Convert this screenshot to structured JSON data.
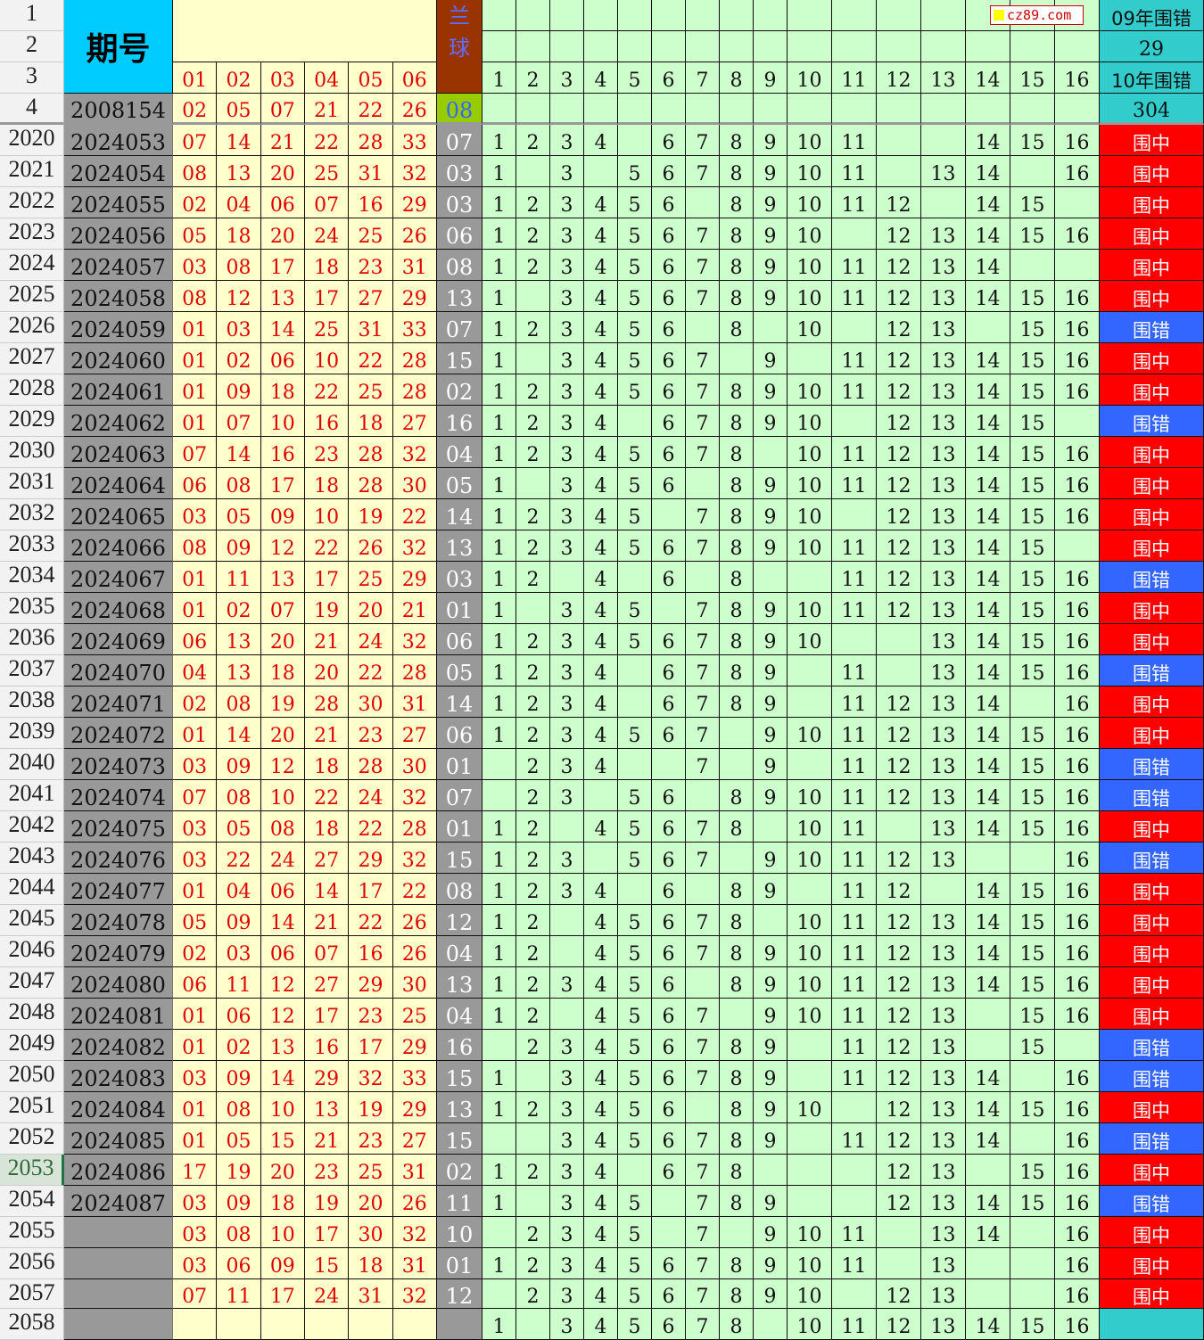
{
  "header": {
    "row_numbers": [
      "1",
      "2",
      "3",
      "4"
    ],
    "issue_title": "期号",
    "red_labels": [
      "01",
      "02",
      "03",
      "04",
      "05",
      "06"
    ],
    "blue_title": "兰球",
    "col_labels": [
      "1",
      "2",
      "3",
      "4",
      "5",
      "6",
      "7",
      "8",
      "9",
      "10",
      "11",
      "12",
      "13",
      "14",
      "15",
      "16"
    ],
    "stat_09_label": "09年围错",
    "stat_09_value": "29",
    "stat_10_label": "10年围错",
    "stat_10_value": "304",
    "ref_issue": "2008154",
    "ref_red": [
      "02",
      "05",
      "07",
      "21",
      "22",
      "26"
    ],
    "ref_blue": "08"
  },
  "watermark": "cz89.com",
  "colors": {
    "hit": "#ff0000",
    "miss": "#3366ff",
    "issue_bg": "#999999",
    "red_bg": "#ffffcc",
    "grid_bg": "#ccffcc",
    "header_cyan": "#00ccff",
    "blue_header": "#993300"
  },
  "selected_row": "2053",
  "rows": [
    {
      "n": "2020",
      "issue": "2024053",
      "red": [
        "07",
        "14",
        "21",
        "22",
        "28",
        "33"
      ],
      "blue": "07",
      "nums": [
        1,
        2,
        3,
        4,
        6,
        7,
        8,
        9,
        10,
        11,
        14,
        15,
        16
      ],
      "status": "围中"
    },
    {
      "n": "2021",
      "issue": "2024054",
      "red": [
        "08",
        "13",
        "20",
        "25",
        "31",
        "32"
      ],
      "blue": "03",
      "nums": [
        1,
        3,
        5,
        6,
        7,
        8,
        9,
        10,
        11,
        13,
        14,
        16
      ],
      "status": "围中"
    },
    {
      "n": "2022",
      "issue": "2024055",
      "red": [
        "02",
        "04",
        "06",
        "07",
        "16",
        "29"
      ],
      "blue": "03",
      "nums": [
        1,
        2,
        3,
        4,
        5,
        6,
        8,
        9,
        10,
        11,
        12,
        14,
        15
      ],
      "status": "围中"
    },
    {
      "n": "2023",
      "issue": "2024056",
      "red": [
        "05",
        "18",
        "20",
        "24",
        "25",
        "26"
      ],
      "blue": "06",
      "nums": [
        1,
        2,
        3,
        4,
        5,
        6,
        7,
        8,
        9,
        10,
        12,
        13,
        14,
        15,
        16
      ],
      "status": "围中"
    },
    {
      "n": "2024",
      "issue": "2024057",
      "red": [
        "03",
        "08",
        "17",
        "18",
        "23",
        "31"
      ],
      "blue": "08",
      "nums": [
        1,
        2,
        3,
        4,
        5,
        6,
        7,
        8,
        9,
        10,
        11,
        12,
        13,
        14
      ],
      "status": "围中"
    },
    {
      "n": "2025",
      "issue": "2024058",
      "red": [
        "08",
        "12",
        "13",
        "17",
        "27",
        "29"
      ],
      "blue": "13",
      "nums": [
        1,
        3,
        4,
        5,
        6,
        7,
        8,
        9,
        10,
        11,
        12,
        13,
        14,
        15,
        16
      ],
      "status": "围中"
    },
    {
      "n": "2026",
      "issue": "2024059",
      "red": [
        "01",
        "03",
        "14",
        "25",
        "31",
        "33"
      ],
      "blue": "07",
      "nums": [
        1,
        2,
        3,
        4,
        5,
        6,
        8,
        10,
        12,
        13,
        15,
        16
      ],
      "status": "围错"
    },
    {
      "n": "2027",
      "issue": "2024060",
      "red": [
        "01",
        "02",
        "06",
        "10",
        "22",
        "28"
      ],
      "blue": "15",
      "nums": [
        1,
        3,
        4,
        5,
        6,
        7,
        9,
        11,
        12,
        13,
        14,
        15,
        16
      ],
      "status": "围中"
    },
    {
      "n": "2028",
      "issue": "2024061",
      "red": [
        "01",
        "09",
        "18",
        "22",
        "25",
        "28"
      ],
      "blue": "02",
      "nums": [
        1,
        2,
        3,
        4,
        5,
        6,
        7,
        8,
        9,
        10,
        11,
        12,
        13,
        14,
        15,
        16
      ],
      "status": "围中"
    },
    {
      "n": "2029",
      "issue": "2024062",
      "red": [
        "01",
        "07",
        "10",
        "16",
        "18",
        "27"
      ],
      "blue": "16",
      "nums": [
        1,
        2,
        3,
        4,
        6,
        7,
        8,
        9,
        10,
        12,
        13,
        14,
        15
      ],
      "status": "围错"
    },
    {
      "n": "2030",
      "issue": "2024063",
      "red": [
        "07",
        "14",
        "16",
        "23",
        "28",
        "32"
      ],
      "blue": "04",
      "nums": [
        1,
        2,
        3,
        4,
        5,
        6,
        7,
        8,
        10,
        11,
        12,
        13,
        14,
        15,
        16
      ],
      "status": "围中"
    },
    {
      "n": "2031",
      "issue": "2024064",
      "red": [
        "06",
        "08",
        "17",
        "18",
        "28",
        "30"
      ],
      "blue": "05",
      "nums": [
        1,
        3,
        4,
        5,
        6,
        8,
        9,
        10,
        11,
        12,
        13,
        14,
        15,
        16
      ],
      "status": "围中"
    },
    {
      "n": "2032",
      "issue": "2024065",
      "red": [
        "03",
        "05",
        "09",
        "10",
        "19",
        "22"
      ],
      "blue": "14",
      "nums": [
        1,
        2,
        3,
        4,
        5,
        7,
        8,
        9,
        10,
        12,
        13,
        14,
        15,
        16
      ],
      "status": "围中"
    },
    {
      "n": "2033",
      "issue": "2024066",
      "red": [
        "08",
        "09",
        "12",
        "22",
        "26",
        "32"
      ],
      "blue": "13",
      "nums": [
        1,
        2,
        3,
        4,
        5,
        6,
        7,
        8,
        9,
        10,
        11,
        12,
        13,
        14,
        15
      ],
      "status": "围中"
    },
    {
      "n": "2034",
      "issue": "2024067",
      "red": [
        "01",
        "11",
        "13",
        "17",
        "25",
        "29"
      ],
      "blue": "03",
      "nums": [
        1,
        2,
        4,
        6,
        8,
        11,
        12,
        13,
        14,
        15,
        16
      ],
      "status": "围错"
    },
    {
      "n": "2035",
      "issue": "2024068",
      "red": [
        "01",
        "02",
        "07",
        "19",
        "20",
        "21"
      ],
      "blue": "01",
      "nums": [
        1,
        3,
        4,
        5,
        7,
        8,
        9,
        10,
        11,
        12,
        13,
        14,
        15,
        16
      ],
      "status": "围中"
    },
    {
      "n": "2036",
      "issue": "2024069",
      "red": [
        "06",
        "13",
        "20",
        "21",
        "24",
        "32"
      ],
      "blue": "06",
      "nums": [
        1,
        2,
        3,
        4,
        5,
        6,
        7,
        8,
        9,
        10,
        13,
        14,
        15,
        16
      ],
      "status": "围中"
    },
    {
      "n": "2037",
      "issue": "2024070",
      "red": [
        "04",
        "13",
        "18",
        "20",
        "22",
        "28"
      ],
      "blue": "05",
      "nums": [
        1,
        2,
        3,
        4,
        6,
        7,
        8,
        9,
        11,
        13,
        14,
        15,
        16
      ],
      "status": "围错"
    },
    {
      "n": "2038",
      "issue": "2024071",
      "red": [
        "02",
        "08",
        "19",
        "28",
        "30",
        "31"
      ],
      "blue": "14",
      "nums": [
        1,
        2,
        3,
        4,
        6,
        7,
        8,
        9,
        11,
        12,
        13,
        14,
        16
      ],
      "status": "围中"
    },
    {
      "n": "2039",
      "issue": "2024072",
      "red": [
        "01",
        "14",
        "20",
        "21",
        "23",
        "27"
      ],
      "blue": "06",
      "nums": [
        1,
        2,
        3,
        4,
        5,
        6,
        7,
        9,
        10,
        11,
        12,
        13,
        14,
        15,
        16
      ],
      "status": "围中"
    },
    {
      "n": "2040",
      "issue": "2024073",
      "red": [
        "03",
        "09",
        "12",
        "18",
        "28",
        "30"
      ],
      "blue": "01",
      "nums": [
        2,
        3,
        4,
        7,
        9,
        11,
        12,
        13,
        14,
        15,
        16
      ],
      "status": "围错"
    },
    {
      "n": "2041",
      "issue": "2024074",
      "red": [
        "07",
        "08",
        "10",
        "22",
        "24",
        "32"
      ],
      "blue": "07",
      "nums": [
        2,
        3,
        5,
        6,
        8,
        9,
        10,
        11,
        12,
        13,
        14,
        15,
        16
      ],
      "status": "围错"
    },
    {
      "n": "2042",
      "issue": "2024075",
      "red": [
        "03",
        "05",
        "08",
        "18",
        "22",
        "28"
      ],
      "blue": "01",
      "nums": [
        1,
        2,
        4,
        5,
        6,
        7,
        8,
        10,
        11,
        13,
        14,
        15,
        16
      ],
      "status": "围中"
    },
    {
      "n": "2043",
      "issue": "2024076",
      "red": [
        "03",
        "22",
        "24",
        "27",
        "29",
        "32"
      ],
      "blue": "15",
      "nums": [
        1,
        2,
        3,
        5,
        6,
        7,
        9,
        10,
        11,
        12,
        13,
        16
      ],
      "status": "围错"
    },
    {
      "n": "2044",
      "issue": "2024077",
      "red": [
        "01",
        "04",
        "06",
        "14",
        "17",
        "22"
      ],
      "blue": "08",
      "nums": [
        1,
        2,
        3,
        4,
        6,
        8,
        9,
        11,
        12,
        14,
        15,
        16
      ],
      "status": "围中"
    },
    {
      "n": "2045",
      "issue": "2024078",
      "red": [
        "05",
        "09",
        "14",
        "21",
        "22",
        "26"
      ],
      "blue": "12",
      "nums": [
        1,
        2,
        4,
        5,
        6,
        7,
        8,
        10,
        11,
        12,
        13,
        14,
        15,
        16
      ],
      "status": "围中"
    },
    {
      "n": "2046",
      "issue": "2024079",
      "red": [
        "02",
        "03",
        "06",
        "07",
        "16",
        "26"
      ],
      "blue": "04",
      "nums": [
        1,
        2,
        4,
        5,
        6,
        7,
        8,
        9,
        10,
        11,
        12,
        13,
        14,
        15,
        16
      ],
      "status": "围中"
    },
    {
      "n": "2047",
      "issue": "2024080",
      "red": [
        "06",
        "11",
        "12",
        "27",
        "29",
        "30"
      ],
      "blue": "13",
      "nums": [
        1,
        2,
        3,
        4,
        5,
        6,
        8,
        9,
        10,
        11,
        12,
        13,
        14,
        15,
        16
      ],
      "status": "围中"
    },
    {
      "n": "2048",
      "issue": "2024081",
      "red": [
        "01",
        "06",
        "12",
        "17",
        "23",
        "25"
      ],
      "blue": "04",
      "nums": [
        1,
        2,
        4,
        5,
        6,
        7,
        9,
        10,
        11,
        12,
        13,
        15,
        16
      ],
      "status": "围中"
    },
    {
      "n": "2049",
      "issue": "2024082",
      "red": [
        "01",
        "02",
        "13",
        "16",
        "17",
        "29"
      ],
      "blue": "16",
      "nums": [
        2,
        3,
        4,
        5,
        6,
        7,
        8,
        9,
        11,
        12,
        13,
        15
      ],
      "status": "围错"
    },
    {
      "n": "2050",
      "issue": "2024083",
      "red": [
        "03",
        "09",
        "14",
        "29",
        "32",
        "33"
      ],
      "blue": "15",
      "nums": [
        1,
        3,
        4,
        5,
        6,
        7,
        8,
        9,
        11,
        12,
        13,
        14,
        16
      ],
      "status": "围错"
    },
    {
      "n": "2051",
      "issue": "2024084",
      "red": [
        "01",
        "08",
        "10",
        "13",
        "19",
        "29"
      ],
      "blue": "13",
      "nums": [
        1,
        2,
        3,
        4,
        5,
        6,
        8,
        9,
        10,
        12,
        13,
        14,
        15,
        16
      ],
      "status": "围中"
    },
    {
      "n": "2052",
      "issue": "2024085",
      "red": [
        "01",
        "05",
        "15",
        "21",
        "23",
        "27"
      ],
      "blue": "15",
      "nums": [
        3,
        4,
        5,
        6,
        7,
        8,
        9,
        11,
        12,
        13,
        14,
        16
      ],
      "status": "围错"
    },
    {
      "n": "2053",
      "issue": "2024086",
      "red": [
        "17",
        "19",
        "20",
        "23",
        "25",
        "31"
      ],
      "blue": "02",
      "nums": [
        1,
        2,
        3,
        4,
        6,
        7,
        8,
        12,
        13,
        15,
        16
      ],
      "status": "围中"
    },
    {
      "n": "2054",
      "issue": "2024087",
      "red": [
        "03",
        "09",
        "18",
        "19",
        "20",
        "26"
      ],
      "blue": "11",
      "nums": [
        1,
        3,
        4,
        5,
        7,
        8,
        9,
        12,
        13,
        14,
        15,
        16
      ],
      "status": "围错"
    },
    {
      "n": "2055",
      "issue": "",
      "red": [
        "03",
        "08",
        "10",
        "17",
        "30",
        "32"
      ],
      "blue": "10",
      "nums": [
        2,
        3,
        4,
        5,
        7,
        9,
        10,
        11,
        13,
        14,
        16
      ],
      "status": "围中"
    },
    {
      "n": "2056",
      "issue": "",
      "red": [
        "03",
        "06",
        "09",
        "15",
        "18",
        "31"
      ],
      "blue": "01",
      "nums": [
        1,
        2,
        3,
        4,
        5,
        6,
        7,
        8,
        9,
        10,
        11,
        13,
        16
      ],
      "status": "围中"
    },
    {
      "n": "2057",
      "issue": "",
      "red": [
        "07",
        "11",
        "17",
        "24",
        "31",
        "32"
      ],
      "blue": "12",
      "nums": [
        2,
        3,
        4,
        5,
        6,
        7,
        8,
        9,
        10,
        12,
        13,
        16
      ],
      "status": "围中"
    },
    {
      "n": "2058",
      "issue": "",
      "red": [
        "",
        "",
        "",
        "",
        "",
        ""
      ],
      "blue": "",
      "nums": [
        1,
        3,
        4,
        5,
        6,
        7,
        8,
        10,
        11,
        12,
        13,
        14,
        15,
        16
      ],
      "status": ""
    }
  ]
}
